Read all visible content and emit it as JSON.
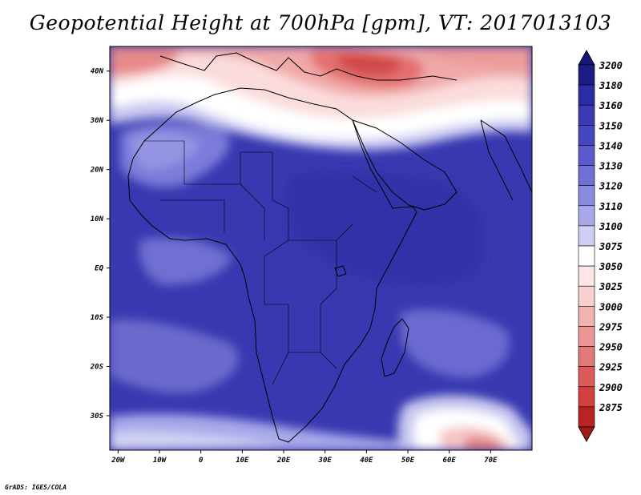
{
  "title": "Geopotential Height at 700hPa [gpm], VT: 2017013103",
  "credit": "GrADS: IGES/COLA",
  "map": {
    "variable": "geopotential height",
    "level": "700hPa",
    "units": "gpm",
    "valid_time": "2017013103",
    "lon_range": [
      -22,
      80
    ],
    "lat_range": [
      -37,
      45
    ],
    "lat_ticks": [
      {
        "value": 40,
        "label": "40N"
      },
      {
        "value": 30,
        "label": "30N"
      },
      {
        "value": 20,
        "label": "20N"
      },
      {
        "value": 10,
        "label": "10N"
      },
      {
        "value": 0,
        "label": "EQ"
      },
      {
        "value": -10,
        "label": "10S"
      },
      {
        "value": -20,
        "label": "20S"
      },
      {
        "value": -30,
        "label": "30S"
      }
    ],
    "lon_ticks": [
      {
        "value": -20,
        "label": "20W"
      },
      {
        "value": -10,
        "label": "10W"
      },
      {
        "value": 0,
        "label": "0"
      },
      {
        "value": 10,
        "label": "10E"
      },
      {
        "value": 20,
        "label": "20E"
      },
      {
        "value": 30,
        "label": "30E"
      },
      {
        "value": 40,
        "label": "40E"
      },
      {
        "value": 50,
        "label": "50E"
      },
      {
        "value": 60,
        "label": "60E"
      },
      {
        "value": 70,
        "label": "70E"
      }
    ],
    "features": [
      {
        "name": "high-band-south-atlantic-indian",
        "level": 3160
      },
      {
        "name": "low-region-mediterranean-turkey",
        "level": 2925
      },
      {
        "name": "low-region-south-indian-ocean",
        "level": 2975
      },
      {
        "name": "low-region-north-atlantic-iberia",
        "level": 3000
      }
    ]
  },
  "colorbar": {
    "levels": [
      {
        "label": "3200",
        "color": "#1c1c84"
      },
      {
        "label": "3180",
        "color": "#2c2ca4"
      },
      {
        "label": "3160",
        "color": "#3a3ab4"
      },
      {
        "label": "3150",
        "color": "#4646c0"
      },
      {
        "label": "3140",
        "color": "#5a5acc"
      },
      {
        "label": "3130",
        "color": "#7070d6"
      },
      {
        "label": "3120",
        "color": "#8a8adf"
      },
      {
        "label": "3110",
        "color": "#a8a8ea"
      },
      {
        "label": "3100",
        "color": "#d0d0f5"
      },
      {
        "label": "3075",
        "color": "#ffffff"
      },
      {
        "label": "3050",
        "color": "#fde6e6"
      },
      {
        "label": "3025",
        "color": "#f8cfcf"
      },
      {
        "label": "3000",
        "color": "#f2b3b3"
      },
      {
        "label": "2975",
        "color": "#eb9595"
      },
      {
        "label": "2950",
        "color": "#e37878"
      },
      {
        "label": "2925",
        "color": "#dc5a5a"
      },
      {
        "label": "2900",
        "color": "#d24040"
      },
      {
        "label": "2875",
        "color": "#b82424"
      }
    ],
    "top_color": "#16167a",
    "bottom_color": "#a01818"
  }
}
